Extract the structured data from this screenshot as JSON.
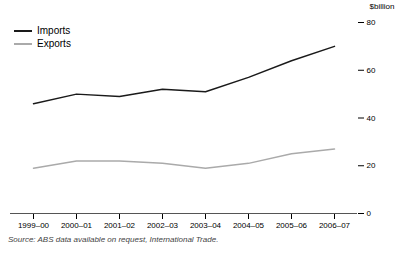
{
  "chart_data": {
    "type": "line",
    "categories": [
      "1999–00",
      "2000–01",
      "2001–02",
      "2002–03",
      "2003–04",
      "2004–05",
      "2005–06",
      "2006–07"
    ],
    "series": [
      {
        "name": "Imports",
        "color": "#1a1a1a",
        "values": [
          46,
          50,
          49,
          52,
          51,
          57,
          64,
          70
        ]
      },
      {
        "name": "Exports",
        "color": "#aaaaaa",
        "values": [
          19,
          22,
          22,
          21,
          19,
          21,
          25,
          27
        ]
      }
    ],
    "ylim": [
      0,
      80
    ],
    "yticks": [
      0,
      20,
      40,
      60,
      80
    ],
    "ylabel": "$billion",
    "legend": "upper left",
    "grid": false,
    "caption": "Source: ABS data available on request, International Trade."
  }
}
